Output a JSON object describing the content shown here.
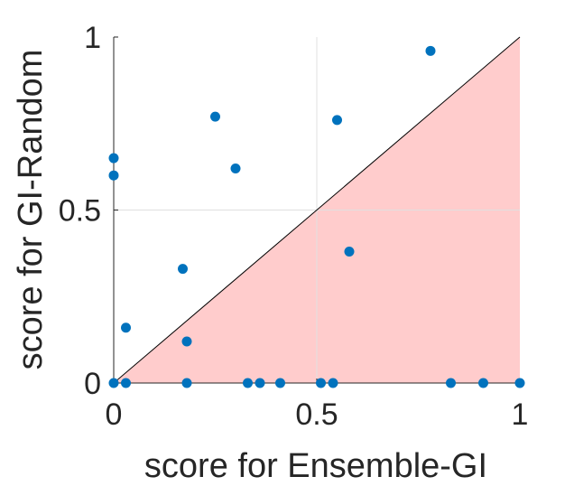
{
  "chart_data": {
    "type": "scatter",
    "title": "",
    "xlabel": "score for Ensemble-GI",
    "ylabel": "score for GI-Random",
    "xlim": [
      0,
      1
    ],
    "ylim": [
      0,
      1
    ],
    "xticks": [
      {
        "value": 0,
        "label": "0"
      },
      {
        "value": 0.5,
        "label": "0.5"
      },
      {
        "value": 1,
        "label": "1"
      }
    ],
    "yticks": [
      {
        "value": 0,
        "label": "0"
      },
      {
        "value": 0.5,
        "label": "0.5"
      },
      {
        "value": 1,
        "label": "1"
      }
    ],
    "grid": true,
    "reference_line": {
      "from": [
        0,
        0
      ],
      "to": [
        1,
        1
      ],
      "color": "#000000"
    },
    "shaded_region": {
      "description": "below diagonal",
      "color": "#ffcccc"
    },
    "marker_color": "#0072bd",
    "points": [
      {
        "x": 0.0,
        "y": 0.0
      },
      {
        "x": 0.0,
        "y": 0.6
      },
      {
        "x": 0.0,
        "y": 0.65
      },
      {
        "x": 0.03,
        "y": 0.0
      },
      {
        "x": 0.03,
        "y": 0.16
      },
      {
        "x": 0.17,
        "y": 0.33
      },
      {
        "x": 0.18,
        "y": 0.0
      },
      {
        "x": 0.18,
        "y": 0.12
      },
      {
        "x": 0.25,
        "y": 0.77
      },
      {
        "x": 0.3,
        "y": 0.62
      },
      {
        "x": 0.33,
        "y": 0.0
      },
      {
        "x": 0.36,
        "y": 0.0
      },
      {
        "x": 0.41,
        "y": 0.0
      },
      {
        "x": 0.51,
        "y": 0.0
      },
      {
        "x": 0.54,
        "y": 0.0
      },
      {
        "x": 0.55,
        "y": 0.76
      },
      {
        "x": 0.58,
        "y": 0.38
      },
      {
        "x": 0.78,
        "y": 0.96
      },
      {
        "x": 0.83,
        "y": 0.0
      },
      {
        "x": 0.91,
        "y": 0.0
      },
      {
        "x": 1.0,
        "y": 0.0
      }
    ]
  }
}
